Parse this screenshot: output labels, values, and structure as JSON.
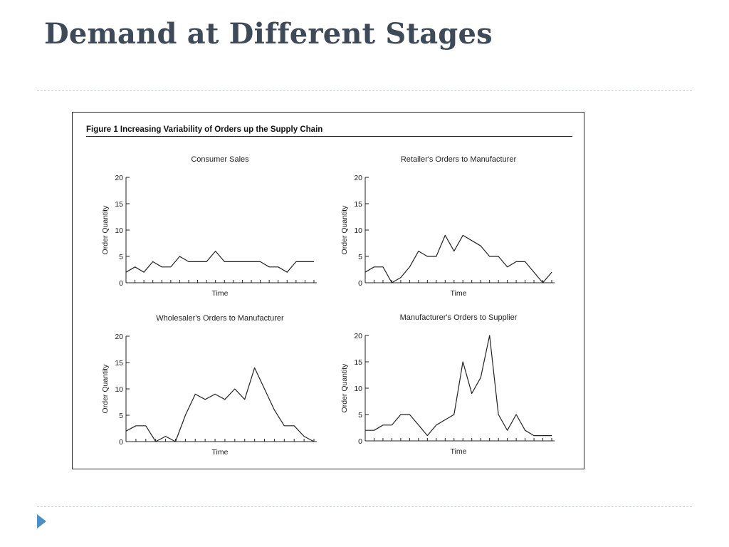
{
  "slide": {
    "title": "Demand at Different Stages",
    "bullet_icon": "triangle-bullet-icon",
    "accent": "#4b8fc6",
    "title_color": "#3e4a58"
  },
  "figure": {
    "caption": "Figure 1   Increasing Variability of Orders up the Supply Chain"
  },
  "chart_data": [
    {
      "type": "line",
      "title": "Consumer Sales",
      "xlabel": "Time",
      "ylabel": "Order Quantity",
      "ylim": [
        0,
        20
      ],
      "yticks": [
        0,
        5,
        10,
        15,
        20
      ],
      "grid": false,
      "x": [
        1,
        2,
        3,
        4,
        5,
        6,
        7,
        8,
        9,
        10,
        11,
        12,
        13,
        14,
        15,
        16,
        17,
        18,
        19,
        20,
        21,
        22
      ],
      "values": [
        2,
        3,
        2,
        4,
        3,
        3,
        5,
        4,
        4,
        4,
        6,
        4,
        4,
        4,
        4,
        4,
        3,
        3,
        2,
        4,
        4,
        4
      ]
    },
    {
      "type": "line",
      "title": "Retailer's Orders to Manufacturer",
      "xlabel": "Time",
      "ylabel": "Order Quantity",
      "ylim": [
        0,
        20
      ],
      "yticks": [
        0,
        5,
        10,
        15,
        20
      ],
      "grid": false,
      "x": [
        1,
        2,
        3,
        4,
        5,
        6,
        7,
        8,
        9,
        10,
        11,
        12,
        13,
        14,
        15,
        16,
        17,
        18,
        19,
        20,
        21,
        22
      ],
      "values": [
        2,
        3,
        3,
        0,
        1,
        3,
        6,
        5,
        5,
        9,
        6,
        9,
        8,
        7,
        5,
        5,
        3,
        4,
        4,
        2,
        0,
        2
      ]
    },
    {
      "type": "line",
      "title": "Wholesaler's Orders to Manufacturer",
      "xlabel": "Time",
      "ylabel": "Order Quantity",
      "ylim": [
        0,
        20
      ],
      "yticks": [
        0,
        5,
        10,
        15,
        20
      ],
      "grid": false,
      "x": [
        1,
        2,
        3,
        4,
        5,
        6,
        7,
        8,
        9,
        10,
        11,
        12,
        13,
        14,
        15,
        16,
        17,
        18,
        19,
        20
      ],
      "values": [
        2,
        3,
        3,
        0,
        1,
        0,
        5,
        9,
        8,
        9,
        8,
        10,
        8,
        14,
        10,
        6,
        3,
        3,
        1,
        0
      ]
    },
    {
      "type": "line",
      "title": "Manufacturer's Orders to Supplier",
      "xlabel": "Time",
      "ylabel": "Order Quantity",
      "ylim": [
        0,
        20
      ],
      "yticks": [
        0,
        5,
        10,
        15,
        20
      ],
      "grid": false,
      "x": [
        1,
        2,
        3,
        4,
        5,
        6,
        7,
        8,
        9,
        10,
        11,
        12,
        13,
        14,
        15,
        16,
        17,
        18,
        19,
        20,
        21,
        22
      ],
      "values": [
        2,
        2,
        3,
        3,
        5,
        5,
        3,
        1,
        3,
        4,
        5,
        15,
        9,
        12,
        20,
        5,
        2,
        5,
        2,
        1,
        1,
        1
      ]
    }
  ]
}
